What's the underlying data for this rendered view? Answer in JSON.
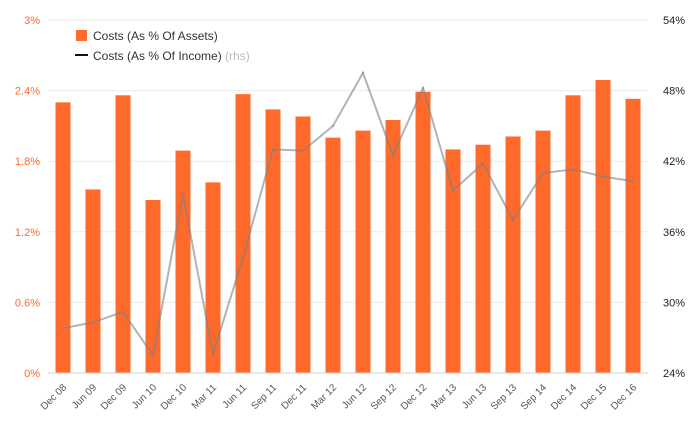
{
  "chart_data": {
    "type": "bar",
    "categories": [
      "Dec 08",
      "Jun 09",
      "Dec 09",
      "Jun 10",
      "Dec 10",
      "Mar 11",
      "Jun 11",
      "Sep 11",
      "Dec 11",
      "Mar 12",
      "Jun 12",
      "Sep 12",
      "Dec 12",
      "Mar 13",
      "Jun 13",
      "Sep 13",
      "Sep 14",
      "Dec 14",
      "Dec 15",
      "Dec 16"
    ],
    "series": [
      {
        "name": "Costs (As % Of Assets)",
        "type": "bar",
        "axis": "left",
        "color": "#ff6a2a",
        "values": [
          2.3,
          1.56,
          2.36,
          1.47,
          1.89,
          1.62,
          2.37,
          2.24,
          2.18,
          2.0,
          2.06,
          2.15,
          2.39,
          1.9,
          1.94,
          2.01,
          2.06,
          2.36,
          2.49,
          2.33
        ]
      },
      {
        "name": "Costs (As % Of Income)",
        "type": "line",
        "axis": "right",
        "color": "#808080",
        "values": [
          27.8,
          28.3,
          29.2,
          25.5,
          39.2,
          25.6,
          33.8,
          43.0,
          42.9,
          45.0,
          49.5,
          42.5,
          48.2,
          39.5,
          41.8,
          37.0,
          41.0,
          41.3,
          40.7,
          40.3
        ]
      }
    ],
    "yaxis_left": {
      "min": 0,
      "max": 3,
      "ticks": [
        0,
        0.6,
        1.2,
        1.8,
        2.4,
        3
      ],
      "tick_labels": [
        "0%",
        "0.6%",
        "1.2%",
        "1.8%",
        "2.4%",
        "3%"
      ]
    },
    "yaxis_right": {
      "min": 24,
      "max": 54,
      "ticks": [
        24,
        30,
        36,
        42,
        48,
        54
      ],
      "tick_labels": [
        "24%",
        "30%",
        "36%",
        "42%",
        "48%",
        "54%"
      ]
    },
    "legend": {
      "position": "top-left",
      "items": [
        {
          "label": "Costs (As % Of Assets)",
          "note": ""
        },
        {
          "label": "Costs (As % Of Income)",
          "note": "(rhs)"
        }
      ]
    },
    "grid": true,
    "title": "",
    "xlabel": "",
    "ylabel": ""
  }
}
